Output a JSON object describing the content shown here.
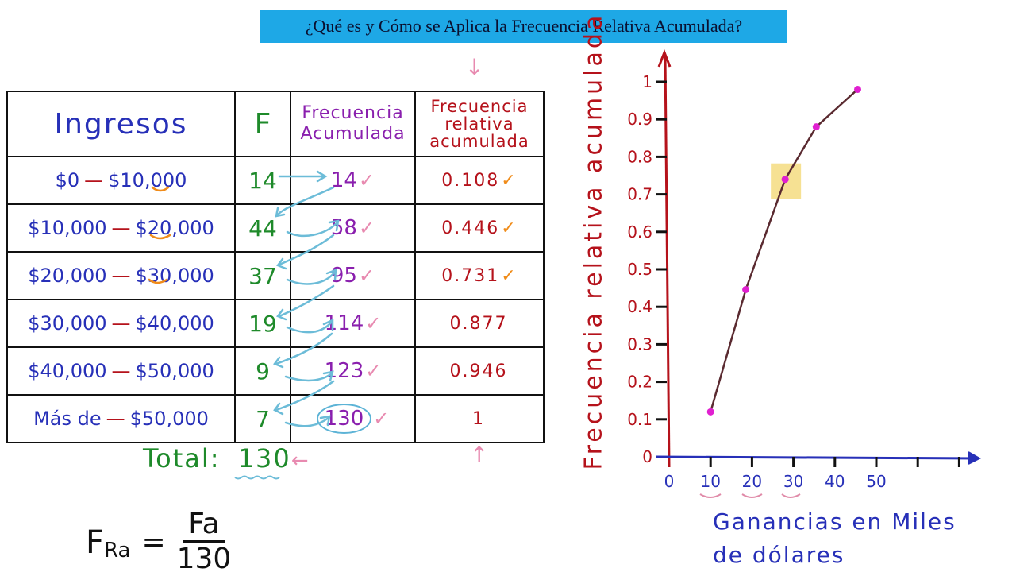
{
  "title": "¿Qué es y Cómo se Aplica la Frecuencia Relativa Acumulada?",
  "table": {
    "headers": {
      "ingresos": "Ingresos",
      "f": "F",
      "fa_line1": "Frecuencia",
      "fa_line2": "Acumulada",
      "fra_line1": "Frecuencia",
      "fra_line2": "relativa",
      "fra_line3": "acumulada"
    },
    "rows": [
      {
        "from": "$0",
        "to": "$10,000",
        "f": "14",
        "fa": "14",
        "fra": "0.108",
        "fa_check": "✓",
        "fra_check": "✓"
      },
      {
        "from": "$10,000",
        "to": "$20,000",
        "f": "44",
        "fa": "58",
        "fra": "0.446",
        "fa_check": "✓",
        "fra_check": "✓"
      },
      {
        "from": "$20,000",
        "to": "$30,000",
        "f": "37",
        "fa": "95",
        "fra": "0.731",
        "fa_check": "✓",
        "fra_check": "✓"
      },
      {
        "from": "$30,000",
        "to": "$40,000",
        "f": "19",
        "fa": "114",
        "fra": "0.877",
        "fa_check": "✓",
        "fra_check": ""
      },
      {
        "from": "$40,000",
        "to": "$50,000",
        "f": "9",
        "fa": "123",
        "fra": "0.946",
        "fa_check": "✓",
        "fra_check": ""
      },
      {
        "from": "Más de",
        "to": "$50,000",
        "f": "7",
        "fa": "130",
        "fra": "1",
        "fa_check": "✓",
        "fra_check": ""
      }
    ],
    "dash": "—"
  },
  "total": {
    "label": "Total:",
    "value": "130",
    "arrow": "←"
  },
  "formula": {
    "lhs": "F",
    "lhs_sub": "Ra",
    "eq": "=",
    "numerator": "Fa",
    "denominator": "130"
  },
  "annotations": {
    "down_arrow": "↓",
    "up_arrow": "↑"
  },
  "colors": {
    "banner": "#1ea8e6",
    "blue_ink": "#2730b8",
    "green_ink": "#1e8a2a",
    "purple_ink": "#8a1fae",
    "red_ink": "#b5121b",
    "point": "#e020d0",
    "line": "#5a2a30",
    "highlight": "#f5dc80"
  },
  "chart_data": {
    "type": "line",
    "title": "",
    "xlabel": "Ganancias en Miles de dólares",
    "ylabel": "Frecuencia relativa acumulada",
    "x_ticks": [
      "0",
      "10",
      "20",
      "30",
      "40",
      "50"
    ],
    "y_ticks": [
      "0",
      "0.1",
      "0.2",
      "0.3",
      "0.4",
      "0.5",
      "0.6",
      "0.7",
      "0.8",
      "0.9",
      "1"
    ],
    "xlim": [
      0,
      75
    ],
    "ylim": [
      0,
      1.1
    ],
    "grid": false,
    "series": [
      {
        "name": "Frecuencia relativa acumulada",
        "x": [
          10,
          18.5,
          28,
          35.5,
          45.5
        ],
        "y": [
          0.12,
          0.446,
          0.74,
          0.88,
          0.98
        ]
      }
    ],
    "highlighted_point": {
      "x": 28,
      "y": 0.74
    }
  },
  "chart_labels": {
    "x_title_line1": "Ganancias en Miles",
    "x_title_line2": "de dólares",
    "y_title": "Frecuencia relativa acumulada"
  }
}
